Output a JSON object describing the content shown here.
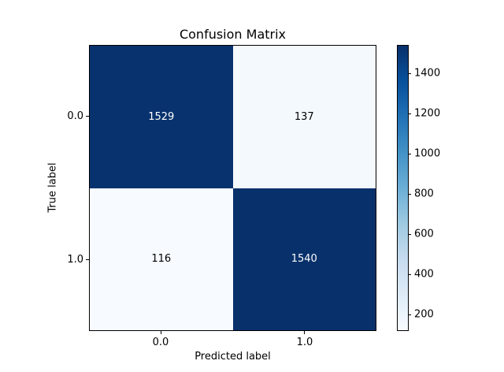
{
  "chart_data": {
    "type": "heatmap",
    "title": "Confusion Matrix",
    "xlabel": "Predicted label",
    "ylabel": "True label",
    "x_tick_labels": [
      "0.0",
      "1.0"
    ],
    "y_tick_labels": [
      "0.0",
      "1.0"
    ],
    "matrix": [
      [
        1529,
        137
      ],
      [
        116,
        1540
      ]
    ],
    "vmin": 116,
    "vmax": 1540,
    "colorbar_ticks": [
      200,
      400,
      600,
      800,
      1000,
      1200,
      1400
    ],
    "colorbar_position": "right",
    "grid": false,
    "colormap": {
      "name": "Blues",
      "stops": [
        "#f7fbff",
        "#deebf7",
        "#c6dbef",
        "#9ecae1",
        "#6baed6",
        "#4292c6",
        "#2171b5",
        "#08519c",
        "#08306b"
      ]
    },
    "colors": {
      "dark_cell": "#08306b",
      "light_cell": "#f7fbff",
      "text_on_dark": "#ffffff",
      "text_on_light": "#000000",
      "frame": "#000000"
    }
  }
}
